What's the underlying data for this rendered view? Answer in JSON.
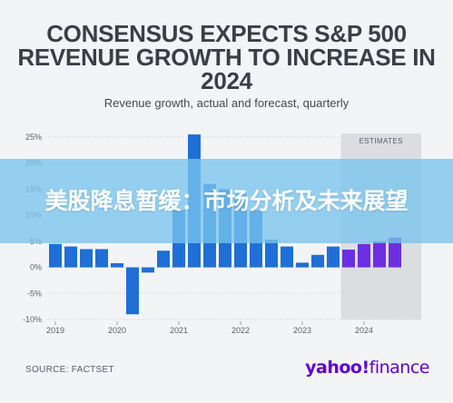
{
  "header": {
    "title_line1": "CONSENSUS EXPECTS S&P 500",
    "title_line2": "REVENUE GROWTH TO INCREASE IN",
    "title_line3": "2024",
    "subtitle": "Revenue growth, actual and forecast, quarterly"
  },
  "overlay": {
    "text": "美股降息暂缓：市场分析及未来展望"
  },
  "footer": {
    "source": "SOURCE: FACTSET",
    "brand_main": "yahoo!",
    "brand_suffix": "finance"
  },
  "colors": {
    "actual": "#1f6fd6",
    "estimate": "#6b2fe0",
    "estimates_band": "#dcdde0",
    "grid": "#d9dbde",
    "axis_text": "#5a6069"
  },
  "chart_data": {
    "type": "bar",
    "x_labels": [
      "2019",
      "2020",
      "2021",
      "2022",
      "2023",
      "2024"
    ],
    "ylim": [
      -10,
      25
    ],
    "yticks": [
      -10,
      -5,
      0,
      5,
      10,
      15,
      20,
      25
    ],
    "ytick_labels": [
      "-10%",
      "-5%",
      "0%",
      "5%",
      "10%",
      "15%",
      "20%",
      "25%"
    ],
    "grid": true,
    "estimates_label": "ESTIMATES",
    "series": [
      {
        "type": "actual",
        "values": [
          4.5,
          4.0,
          3.5,
          3.5,
          0.8,
          -9.0,
          -1.0,
          3.2,
          11.0,
          25.5,
          16.0,
          15.0,
          14.0,
          11.0,
          5.3,
          4.0,
          0.9,
          2.4,
          4.0
        ]
      },
      {
        "type": "estimate",
        "values": [
          3.4,
          4.5,
          5.0,
          5.7
        ]
      }
    ]
  }
}
